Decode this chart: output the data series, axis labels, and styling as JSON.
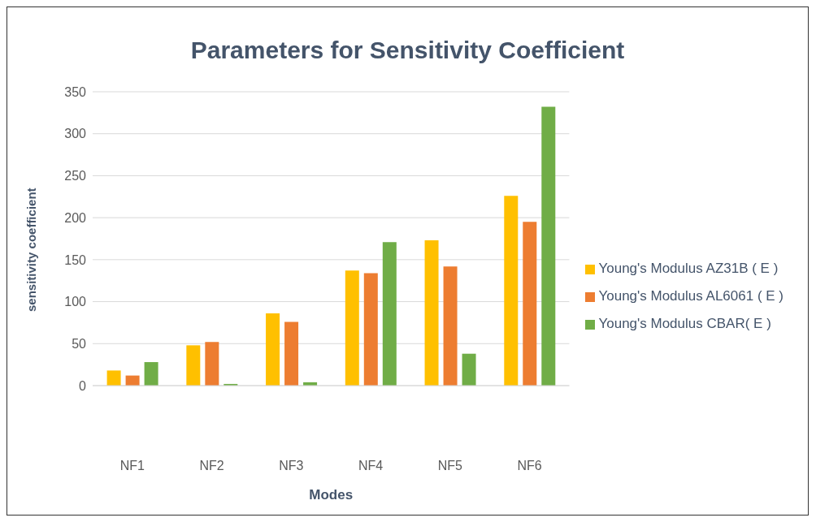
{
  "chart_data": {
    "type": "bar",
    "title": "Parameters for Sensitivity Coefficient",
    "xlabel": "Modes",
    "ylabel": "sensitivity coefficient",
    "categories": [
      "NF1",
      "NF2",
      "NF3",
      "NF4",
      "NF5",
      "NF6"
    ],
    "series": [
      {
        "name": "Young's Modulus AZ31B ( E )",
        "color": "#ffc000",
        "values": [
          18,
          48,
          86,
          137,
          173,
          226
        ]
      },
      {
        "name": "Young's Modulus AL6061 ( E )",
        "color": "#ed7d31",
        "values": [
          12,
          52,
          76,
          134,
          142,
          195
        ]
      },
      {
        "name": "Young's Modulus CBAR( E )",
        "color": "#70ad47",
        "values": [
          28,
          2,
          4,
          171,
          38,
          332
        ]
      }
    ],
    "ylim": [
      0,
      350
    ],
    "yticks": [
      0,
      50,
      100,
      150,
      200,
      250,
      300,
      350
    ],
    "grid": "y",
    "legend": "right"
  }
}
